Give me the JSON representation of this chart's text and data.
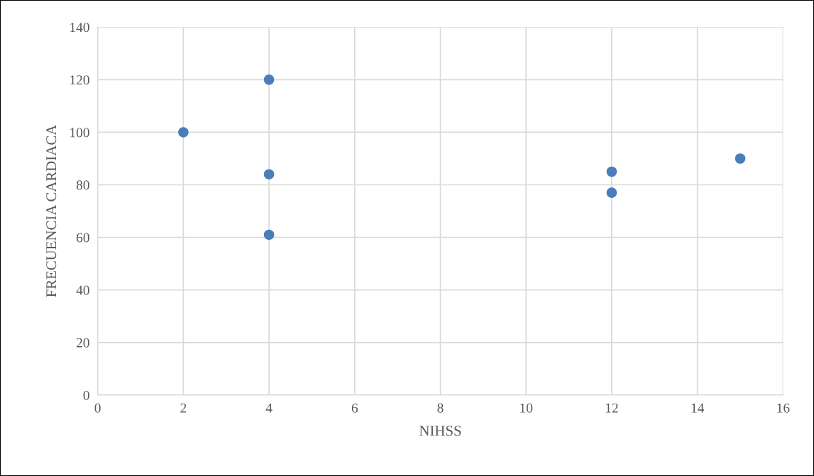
{
  "chart_data": {
    "type": "scatter",
    "xlabel": "NIHSS",
    "ylabel": "FRECUENCIA CARDIACA",
    "x": [
      2,
      4,
      4,
      4,
      12,
      12,
      15
    ],
    "series": [
      {
        "color": "#4a7ebb",
        "values": [
          100,
          120,
          84,
          61,
          85,
          77,
          90
        ]
      }
    ],
    "xlim": [
      0,
      16
    ],
    "xticks": [
      0,
      2,
      4,
      6,
      8,
      10,
      12,
      14,
      16
    ],
    "ylim": [
      0,
      140
    ],
    "yticks": [
      0,
      20,
      40,
      60,
      80,
      100,
      120,
      140
    ],
    "grid": true,
    "marker": "circle",
    "legend": false
  }
}
